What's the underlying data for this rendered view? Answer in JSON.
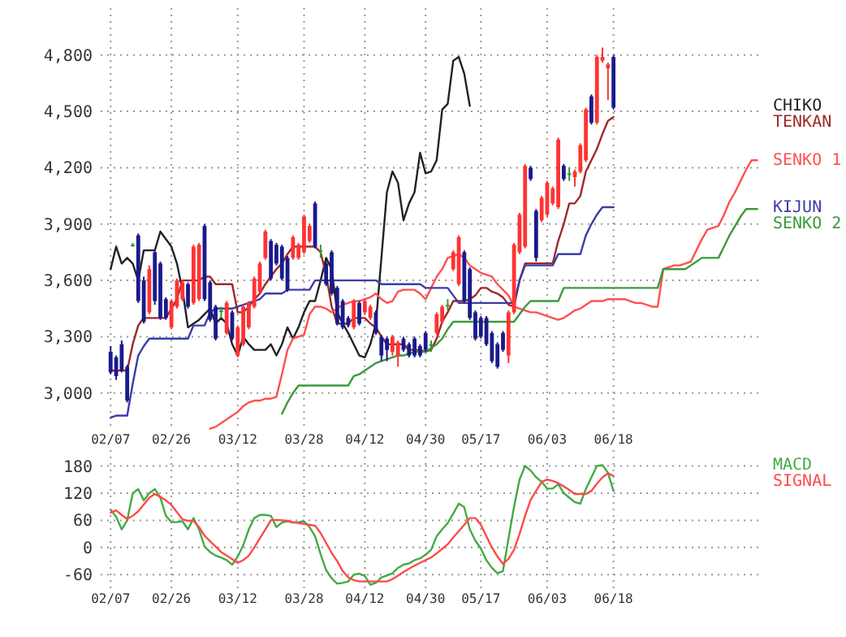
{
  "chart_data": [
    {
      "type": "candlestick",
      "categories": [
        "02/07",
        null,
        null,
        null,
        null,
        null,
        null,
        null,
        null,
        null,
        null,
        "02/26",
        null,
        null,
        null,
        null,
        null,
        null,
        null,
        null,
        null,
        null,
        null,
        "03/12",
        null,
        null,
        null,
        null,
        null,
        null,
        null,
        null,
        null,
        null,
        null,
        "03/28",
        null,
        null,
        null,
        null,
        null,
        null,
        null,
        null,
        null,
        null,
        "04/12",
        null,
        null,
        null,
        null,
        null,
        null,
        null,
        null,
        null,
        null,
        "04/30",
        null,
        null,
        null,
        null,
        null,
        null,
        null,
        null,
        null,
        "05/17",
        null,
        null,
        null,
        null,
        null,
        null,
        null,
        null,
        null,
        null,
        null,
        "06/03",
        null,
        null,
        null,
        null,
        null,
        null,
        null,
        null,
        null,
        null,
        null,
        "06/18",
        null,
        null,
        null,
        null,
        null,
        null,
        null,
        null,
        null,
        null,
        null,
        null,
        null,
        null,
        null,
        null,
        null,
        null,
        null,
        null,
        null,
        null,
        null,
        null,
        null,
        null
      ],
      "ohlc": [
        [
          3220,
          3250,
          3100,
          3110
        ],
        [
          3190,
          3200,
          3070,
          3090
        ],
        [
          3260,
          3280,
          3110,
          3120
        ],
        [
          3140,
          3150,
          2950,
          2960
        ],
        [
          3790,
          3800,
          3780,
          3790
        ],
        [
          3840,
          3850,
          3480,
          3490
        ],
        [
          3600,
          3620,
          3370,
          3380
        ],
        [
          3430,
          3680,
          3420,
          3660
        ],
        [
          3750,
          3760,
          3470,
          3490
        ],
        [
          3690,
          3700,
          3390,
          3400
        ],
        [
          3500,
          3510,
          3390,
          3400
        ],
        [
          3350,
          3500,
          3340,
          3490
        ],
        [
          3460,
          3610,
          3450,
          3600
        ],
        [
          3500,
          3600,
          3490,
          3590
        ],
        [
          3580,
          3590,
          3450,
          3460
        ],
        [
          3480,
          3790,
          3470,
          3780
        ],
        [
          3500,
          3800,
          3490,
          3790
        ],
        [
          3890,
          3900,
          3490,
          3500
        ],
        [
          3590,
          3600,
          3380,
          3390
        ],
        [
          3460,
          3470,
          3280,
          3290
        ],
        [
          3440,
          3460,
          3400,
          3440
        ],
        [
          3320,
          3490,
          3310,
          3480
        ],
        [
          3430,
          3440,
          3280,
          3290
        ],
        [
          3200,
          3360,
          3190,
          3350
        ],
        [
          3260,
          3470,
          3250,
          3460
        ],
        [
          3350,
          3490,
          3340,
          3480
        ],
        [
          3460,
          3620,
          3450,
          3610
        ],
        [
          3540,
          3700,
          3530,
          3690
        ],
        [
          3720,
          3870,
          3710,
          3860
        ],
        [
          3810,
          3820,
          3600,
          3610
        ],
        [
          3790,
          3800,
          3680,
          3690
        ],
        [
          3780,
          3790,
          3600,
          3610
        ],
        [
          3720,
          3730,
          3540,
          3550
        ],
        [
          3720,
          3840,
          3710,
          3830
        ],
        [
          3720,
          3800,
          3710,
          3790
        ],
        [
          3750,
          3950,
          3740,
          3940
        ],
        [
          3810,
          3900,
          3800,
          3890
        ],
        [
          4010,
          4020,
          3770,
          3780
        ],
        [
          3760,
          3790,
          3720,
          3760
        ],
        [
          3690,
          3700,
          3570,
          3580
        ],
        [
          3750,
          3760,
          3520,
          3530
        ],
        [
          3560,
          3570,
          3360,
          3370
        ],
        [
          3490,
          3500,
          3340,
          3350
        ],
        [
          3400,
          3410,
          3350,
          3360
        ],
        [
          3350,
          3500,
          3340,
          3490
        ],
        [
          3480,
          3490,
          3360,
          3370
        ],
        [
          3430,
          3500,
          3420,
          3490
        ],
        [
          3400,
          3470,
          3390,
          3460
        ],
        [
          3430,
          3440,
          3310,
          3320
        ],
        [
          3300,
          3310,
          3170,
          3200
        ],
        [
          3290,
          3300,
          3170,
          3230
        ],
        [
          3220,
          3310,
          3200,
          3300
        ],
        [
          3200,
          3280,
          3140,
          3270
        ],
        [
          3290,
          3300,
          3220,
          3230
        ],
        [
          3260,
          3270,
          3190,
          3200
        ],
        [
          3290,
          3300,
          3190,
          3200
        ],
        [
          3250,
          3260,
          3190,
          3200
        ],
        [
          3320,
          3330,
          3220,
          3230
        ],
        [
          3260,
          3280,
          3220,
          3260
        ],
        [
          3320,
          3430,
          3310,
          3420
        ],
        [
          3380,
          3470,
          3370,
          3460
        ],
        [
          3470,
          3500,
          3440,
          3470
        ],
        [
          3660,
          3760,
          3650,
          3750
        ],
        [
          3580,
          3840,
          3570,
          3830
        ],
        [
          3750,
          3760,
          3480,
          3490
        ],
        [
          3660,
          3670,
          3390,
          3400
        ],
        [
          3430,
          3440,
          3280,
          3290
        ],
        [
          3400,
          3410,
          3290,
          3300
        ],
        [
          3400,
          3410,
          3250,
          3260
        ],
        [
          3320,
          3330,
          3160,
          3170
        ],
        [
          3260,
          3270,
          3130,
          3140
        ],
        [
          3320,
          3330,
          3220,
          3230
        ],
        [
          3200,
          3440,
          3160,
          3430
        ],
        [
          3430,
          3800,
          3420,
          3790
        ],
        [
          3750,
          3960,
          3740,
          3950
        ],
        [
          3780,
          4220,
          3770,
          4210
        ],
        [
          4200,
          4210,
          4130,
          4140
        ],
        [
          3970,
          3980,
          3700,
          3720
        ],
        [
          3920,
          4050,
          3910,
          4040
        ],
        [
          3950,
          4130,
          3940,
          4120
        ],
        [
          4010,
          4100,
          4000,
          4090
        ],
        [
          3990,
          4360,
          3980,
          4350
        ],
        [
          4210,
          4220,
          4130,
          4140
        ],
        [
          4170,
          4200,
          4130,
          4170
        ],
        [
          4150,
          4190,
          4100,
          4180
        ],
        [
          4180,
          4330,
          4170,
          4320
        ],
        [
          4240,
          4520,
          4230,
          4510
        ],
        [
          4580,
          4590,
          4430,
          4440
        ],
        [
          4440,
          4800,
          4430,
          4790
        ],
        [
          4770,
          4840,
          4760,
          4790
        ],
        [
          4730,
          4760,
          4560,
          4750
        ],
        [
          4790,
          4800,
          4510,
          4520
        ],
        null,
        null,
        null,
        null,
        null,
        null,
        null,
        null,
        null,
        null,
        null,
        null,
        null,
        null,
        null,
        null,
        null,
        null,
        null,
        null,
        null,
        null,
        null,
        null,
        null,
        null
      ],
      "colors": [
        "#1a1a8c",
        "#1a1a8c",
        "#1a1a8c",
        "#1a1a8c",
        "#339933",
        "#1a1a8c",
        "#1a1a8c",
        "#ff3333",
        "#1a1a8c",
        "#1a1a8c",
        "#1a1a8c",
        "#ff3333",
        "#ff3333",
        "#ff3333",
        "#1a1a8c",
        "#ff3333",
        "#ff3333",
        "#1a1a8c",
        "#1a1a8c",
        "#1a1a8c",
        "#339933",
        "#ff3333",
        "#1a1a8c",
        "#ff3333",
        "#ff3333",
        "#ff3333",
        "#ff3333",
        "#ff3333",
        "#ff3333",
        "#1a1a8c",
        "#1a1a8c",
        "#1a1a8c",
        "#1a1a8c",
        "#ff3333",
        "#ff3333",
        "#ff3333",
        "#ff3333",
        "#1a1a8c",
        "#339933",
        "#1a1a8c",
        "#1a1a8c",
        "#1a1a8c",
        "#1a1a8c",
        "#1a1a8c",
        "#ff3333",
        "#1a1a8c",
        "#ff3333",
        "#ff3333",
        "#1a1a8c",
        "#1a1a8c",
        "#1a1a8c",
        "#ff3333",
        "#ff3333",
        "#1a1a8c",
        "#1a1a8c",
        "#1a1a8c",
        "#1a1a8c",
        "#1a1a8c",
        "#339933",
        "#ff3333",
        "#ff3333",
        "#339933",
        "#ff3333",
        "#ff3333",
        "#1a1a8c",
        "#1a1a8c",
        "#1a1a8c",
        "#1a1a8c",
        "#1a1a8c",
        "#1a1a8c",
        "#1a1a8c",
        "#1a1a8c",
        "#ff3333",
        "#ff3333",
        "#ff3333",
        "#ff3333",
        "#1a1a8c",
        "#1a1a8c",
        "#ff3333",
        "#ff3333",
        "#ff3333",
        "#ff3333",
        "#1a1a8c",
        "#339933",
        "#ff3333",
        "#ff3333",
        "#ff3333",
        "#1a1a8c",
        "#ff3333",
        "#ff3333",
        "#ff3333",
        "#1a1a8c",
        null,
        null,
        null,
        null,
        null,
        null,
        null,
        null,
        null,
        null,
        null,
        null,
        null,
        null,
        null,
        null,
        null,
        null,
        null,
        null,
        null,
        null,
        null,
        null,
        null,
        null
      ],
      "series": [
        {
          "name": "CHIKO",
          "type": "line",
          "color": "#222222",
          "values": [
            3660,
            3780,
            3690,
            3720,
            3690,
            3600,
            3760,
            3760,
            3760,
            3860,
            3820,
            3780,
            3690,
            3550,
            3350,
            3370,
            3390,
            3420,
            3450,
            3370,
            3400,
            3370,
            3260,
            3200,
            3300,
            3260,
            3230,
            3230,
            3230,
            3260,
            3200,
            3260,
            3350,
            3290,
            3350,
            3430,
            3490,
            3490,
            3600,
            3720,
            3660,
            3430,
            3370,
            3320,
            3260,
            3200,
            3190,
            3260,
            3370,
            3720,
            4070,
            4180,
            4120,
            3920,
            4010,
            4070,
            4280,
            4170,
            4180,
            4240,
            4510,
            4540,
            4770,
            4790,
            4700,
            4530,
            null,
            null,
            null,
            null,
            null,
            null,
            null,
            null,
            null,
            null,
            null,
            null,
            null,
            null,
            null,
            null,
            null,
            null,
            null,
            null,
            null,
            null,
            null,
            null,
            null,
            null,
            null,
            null,
            null,
            null,
            null,
            null,
            null,
            null,
            null,
            null,
            null,
            null,
            null,
            null,
            null,
            null,
            null,
            null,
            null,
            null,
            null,
            null,
            null,
            null,
            null,
            null
          ]
        },
        {
          "name": "TENKAN",
          "type": "line",
          "color": "#a02828",
          "values": [
            3120,
            3120,
            3120,
            3120,
            3260,
            3360,
            3400,
            3400,
            3400,
            3400,
            3400,
            3450,
            3500,
            3600,
            3600,
            3600,
            3600,
            3620,
            3620,
            3580,
            3580,
            3580,
            3580,
            3430,
            3430,
            3460,
            3500,
            3530,
            3580,
            3620,
            3660,
            3690,
            3740,
            3780,
            3780,
            3780,
            3780,
            3780,
            3750,
            3630,
            3460,
            3370,
            3370,
            3370,
            3400,
            3400,
            3400,
            3370,
            3350,
            3300,
            3260,
            3260,
            3260,
            3260,
            3230,
            3230,
            3230,
            3220,
            3230,
            3290,
            3380,
            3430,
            3490,
            3490,
            3490,
            3500,
            3520,
            3560,
            3560,
            3540,
            3530,
            3510,
            3470,
            3460,
            3600,
            3690,
            3690,
            3690,
            3690,
            3690,
            3690,
            3810,
            3900,
            4010,
            4010,
            4050,
            4180,
            4240,
            4300,
            4380,
            4450,
            4470,
            null,
            null,
            null,
            null,
            null,
            null,
            null,
            null,
            null,
            null,
            null,
            null,
            null,
            null,
            null,
            null,
            null,
            null,
            null,
            null,
            null,
            null,
            null,
            null,
            null,
            null
          ]
        },
        {
          "name": "SENKO 1",
          "type": "line",
          "color": "#ff5050",
          "values": [
            null,
            null,
            null,
            null,
            null,
            null,
            null,
            null,
            null,
            null,
            null,
            null,
            null,
            null,
            null,
            null,
            null,
            null,
            2810,
            2820,
            2840,
            2860,
            2880,
            2900,
            2930,
            2950,
            2960,
            2960,
            2970,
            2970,
            2980,
            3100,
            3230,
            3290,
            3300,
            3310,
            3420,
            3460,
            3460,
            3450,
            3430,
            3450,
            3470,
            3480,
            3490,
            3490,
            3500,
            3510,
            3530,
            3500,
            3480,
            3490,
            3540,
            3550,
            3550,
            3550,
            3530,
            3500,
            3560,
            3620,
            3660,
            3720,
            3730,
            3740,
            3720,
            3680,
            3660,
            3640,
            3630,
            3620,
            3580,
            3550,
            3520,
            3460,
            3450,
            3440,
            3430,
            3430,
            3420,
            3410,
            3400,
            3390,
            3400,
            3420,
            3440,
            3450,
            3470,
            3490,
            3490,
            3490,
            3500,
            3500,
            3500,
            3500,
            3490,
            3480,
            3480,
            3470,
            3460,
            3460,
            3660,
            3670,
            3680,
            3680,
            3690,
            3700,
            3760,
            3820,
            3870,
            3880,
            3890,
            3950,
            4020,
            4070,
            4130,
            4190,
            4240,
            4240
          ]
        },
        {
          "name": "KIJUN",
          "type": "line",
          "color": "#3c3ca8",
          "values": [
            2870,
            2880,
            2880,
            2880,
            3050,
            3200,
            3250,
            3290,
            3290,
            3290,
            3290,
            3290,
            3290,
            3290,
            3290,
            3360,
            3360,
            3360,
            3430,
            3450,
            3450,
            3450,
            3450,
            3460,
            3470,
            3480,
            3490,
            3500,
            3530,
            3530,
            3530,
            3530,
            3550,
            3550,
            3550,
            3550,
            3550,
            3600,
            3600,
            3600,
            3600,
            3600,
            3600,
            3600,
            3600,
            3600,
            3600,
            3600,
            3600,
            3580,
            3580,
            3580,
            3580,
            3580,
            3580,
            3580,
            3580,
            3560,
            3560,
            3560,
            3560,
            3560,
            3520,
            3480,
            3480,
            3480,
            3480,
            3480,
            3480,
            3480,
            3480,
            3480,
            3480,
            3480,
            3600,
            3680,
            3680,
            3680,
            3680,
            3680,
            3680,
            3740,
            3740,
            3740,
            3740,
            3740,
            3840,
            3900,
            3950,
            3990,
            3990,
            3990,
            null,
            null,
            null,
            null,
            null,
            null,
            null,
            null,
            null,
            null,
            null,
            null,
            null,
            null,
            null,
            null,
            null,
            null,
            null,
            null,
            null,
            null,
            null,
            null,
            null,
            null
          ]
        },
        {
          "name": "SENKO 2",
          "type": "line",
          "color": "#3c9a3c",
          "values": [
            null,
            null,
            null,
            null,
            null,
            null,
            null,
            null,
            null,
            null,
            null,
            null,
            null,
            null,
            null,
            null,
            null,
            null,
            null,
            null,
            null,
            null,
            null,
            null,
            null,
            null,
            null,
            null,
            null,
            null,
            null,
            2890,
            2950,
            3000,
            3040,
            3040,
            3040,
            3040,
            3040,
            3040,
            3040,
            3040,
            3040,
            3040,
            3090,
            3100,
            3120,
            3140,
            3160,
            3170,
            3180,
            3190,
            3200,
            3200,
            3210,
            3220,
            3220,
            3220,
            3240,
            3260,
            3290,
            3340,
            3380,
            3380,
            3380,
            3380,
            3380,
            3380,
            3380,
            3380,
            3380,
            3380,
            3380,
            3380,
            3420,
            3460,
            3490,
            3490,
            3490,
            3490,
            3490,
            3490,
            3560,
            3560,
            3560,
            3560,
            3560,
            3560,
            3560,
            3560,
            3560,
            3560,
            3560,
            3560,
            3560,
            3560,
            3560,
            3560,
            3560,
            3560,
            3660,
            3660,
            3660,
            3660,
            3660,
            3680,
            3700,
            3720,
            3720,
            3720,
            3720,
            3780,
            3840,
            3890,
            3940,
            3980,
            3980,
            3980
          ]
        }
      ],
      "ylim": [
        2800,
        5050
      ],
      "yticks": [
        {
          "value": 3000,
          "label": "3,000"
        },
        {
          "value": 3300,
          "label": "3,300"
        },
        {
          "value": 3600,
          "label": "3,600"
        },
        {
          "value": 3900,
          "label": "3,900"
        },
        {
          "value": 4200,
          "label": "4,200"
        },
        {
          "value": 4500,
          "label": "4,500"
        },
        {
          "value": 4800,
          "label": "4,800"
        }
      ],
      "grid": true,
      "legend": "right"
    },
    {
      "type": "line",
      "categories": [
        "02/07",
        null,
        null,
        null,
        null,
        null,
        null,
        null,
        null,
        null,
        null,
        "02/26",
        null,
        null,
        null,
        null,
        null,
        null,
        null,
        null,
        null,
        null,
        null,
        "03/12",
        null,
        null,
        null,
        null,
        null,
        null,
        null,
        null,
        null,
        null,
        null,
        "03/28",
        null,
        null,
        null,
        null,
        null,
        null,
        null,
        null,
        null,
        null,
        "04/12",
        null,
        null,
        null,
        null,
        null,
        null,
        null,
        null,
        null,
        null,
        "04/30",
        null,
        null,
        null,
        null,
        null,
        null,
        null,
        null,
        null,
        "05/17",
        null,
        null,
        null,
        null,
        null,
        null,
        null,
        null,
        null,
        null,
        null,
        "06/03",
        null,
        null,
        null,
        null,
        null,
        null,
        null,
        null,
        null,
        null,
        null,
        "06/18",
        null,
        null,
        null,
        null,
        null,
        null,
        null,
        null,
        null,
        null,
        null,
        null,
        null,
        null,
        null,
        null,
        null,
        null,
        null,
        null,
        null,
        null,
        null,
        null,
        null,
        null
      ],
      "series": [
        {
          "name": "MACD",
          "color": "#44aa44",
          "values": [
            83,
            68,
            40,
            60,
            120,
            129,
            104,
            120,
            129,
            110,
            70,
            56,
            56,
            58,
            40,
            65,
            40,
            2,
            -10,
            -18,
            -22,
            -28,
            -38,
            -20,
            5,
            40,
            65,
            72,
            72,
            70,
            45,
            55,
            58,
            55,
            56,
            58,
            45,
            25,
            -15,
            -50,
            -68,
            -80,
            -78,
            -75,
            -60,
            -58,
            -63,
            -82,
            -78,
            -66,
            -62,
            -57,
            -45,
            -38,
            -35,
            -28,
            -24,
            -16,
            -5,
            25,
            40,
            54,
            75,
            97,
            89,
            40,
            15,
            -2,
            -28,
            -45,
            -57,
            -52,
            20,
            90,
            150,
            180,
            170,
            155,
            145,
            130,
            130,
            140,
            120,
            110,
            100,
            97,
            129,
            155,
            180,
            182,
            165,
            125,
            null,
            null,
            null,
            null,
            null,
            null,
            null,
            null,
            null,
            null,
            null,
            null,
            null,
            null,
            null,
            null,
            null,
            null,
            null,
            null,
            null,
            null,
            null,
            null,
            null,
            null
          ]
        },
        {
          "name": "SIGNAL",
          "color": "#ff4a4a",
          "values": [
            77,
            82,
            72,
            63,
            70,
            80,
            95,
            110,
            118,
            112,
            104,
            94,
            78,
            62,
            59,
            59,
            45,
            26,
            14,
            2,
            -10,
            -18,
            -26,
            -34,
            -28,
            -18,
            0,
            20,
            40,
            60,
            61,
            60,
            59,
            56,
            54,
            52,
            50,
            48,
            32,
            10,
            -12,
            -30,
            -52,
            -66,
            -72,
            -75,
            -75,
            -75,
            -75,
            -75,
            -75,
            -70,
            -62,
            -54,
            -47,
            -40,
            -34,
            -28,
            -22,
            -13,
            -3,
            7,
            22,
            36,
            50,
            65,
            65,
            50,
            25,
            0,
            -20,
            -36,
            -25,
            -5,
            30,
            70,
            105,
            125,
            145,
            150,
            147,
            142,
            135,
            127,
            118,
            118,
            118,
            125,
            141,
            155,
            164,
            158,
            null,
            null,
            null,
            null,
            null,
            null,
            null,
            null,
            null,
            null,
            null,
            null,
            null,
            null,
            null,
            null,
            null,
            null,
            null,
            null,
            null,
            null,
            null,
            null,
            null,
            null
          ]
        }
      ],
      "ylim": [
        -90,
        215
      ],
      "yticks": [
        -60,
        0,
        60,
        120,
        180
      ],
      "grid": true,
      "legend": "top right"
    }
  ]
}
